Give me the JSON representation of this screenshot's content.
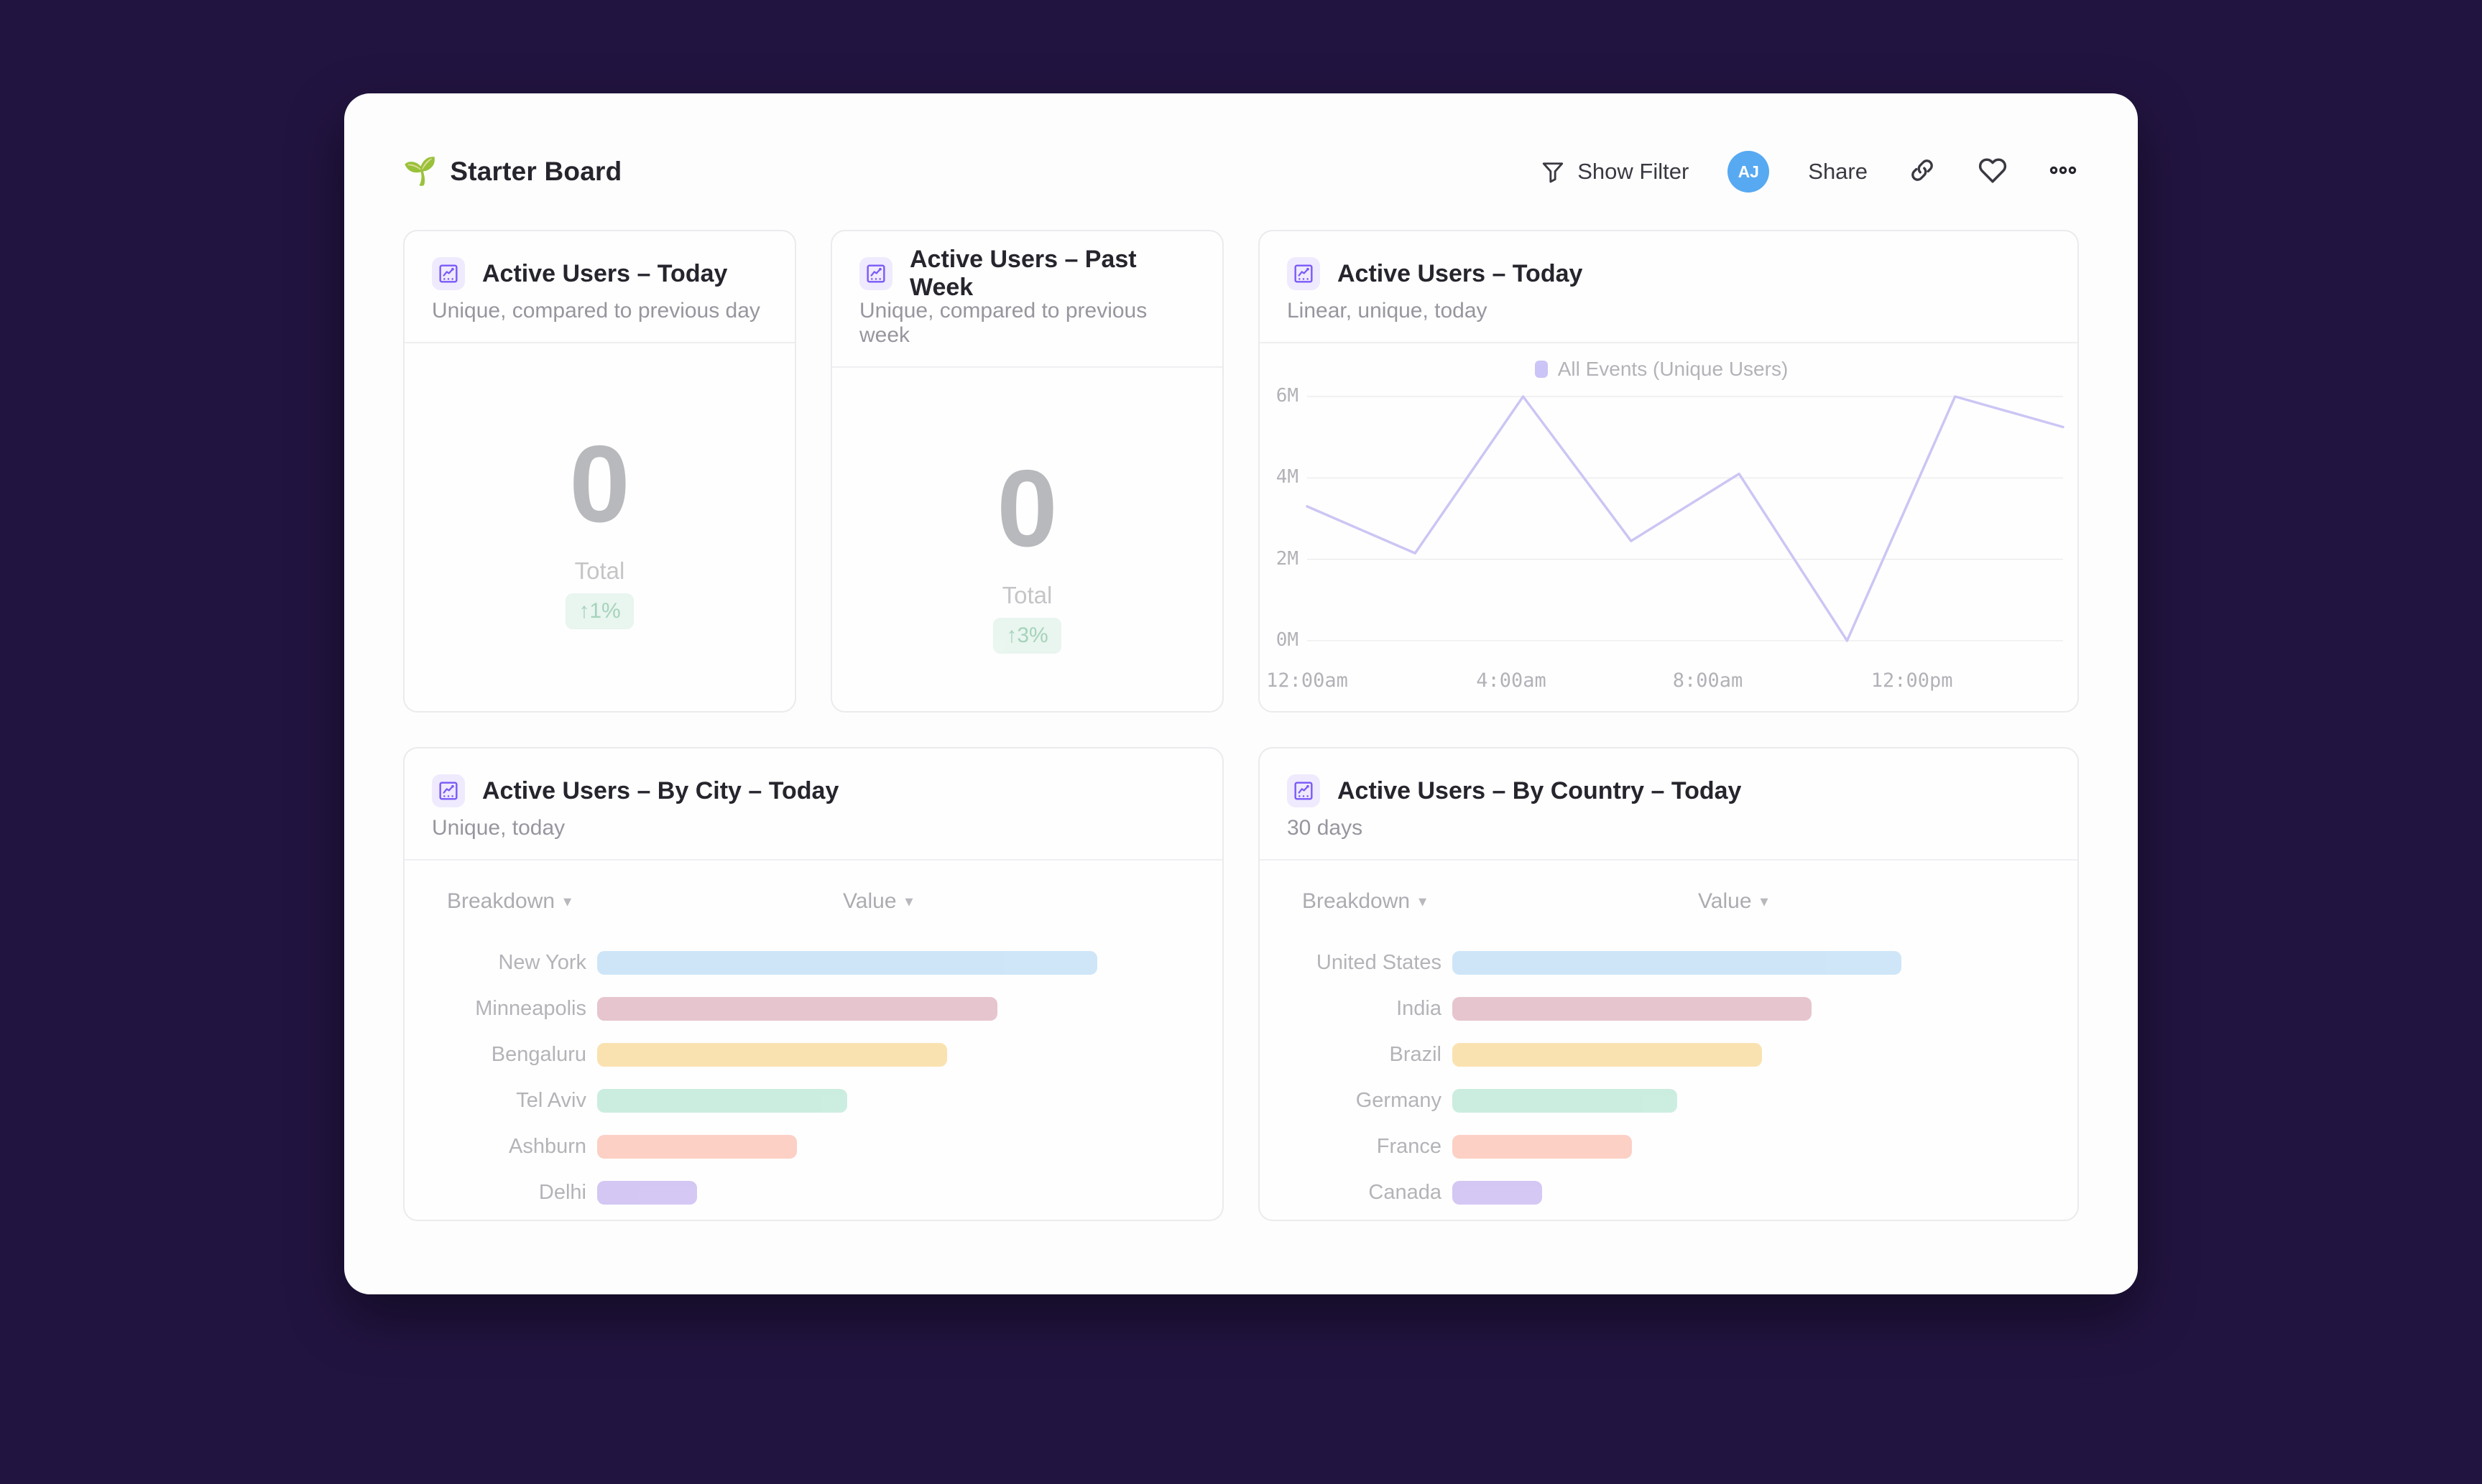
{
  "board": {
    "title": "Starter Board",
    "title_emoji": "🌱",
    "actions": {
      "show_filter": "Show Filter",
      "avatar_initials": "AJ",
      "share": "Share"
    }
  },
  "colors": {
    "page_background": "#221441",
    "accent_purple": "#7a5af8",
    "avatar_blue": "#57a9f1",
    "line_series": "#9a90ec",
    "badge_green_text": "#4fa97b",
    "badge_green_bg": "#d5ede1"
  },
  "widgets": {
    "kpi_today": {
      "title": "Active Users – Today",
      "subtitle": "Unique, compared to previous day",
      "value": "0",
      "value_label": "Total",
      "delta": "↑1%"
    },
    "kpi_week": {
      "title": "Active Users – Past Week",
      "subtitle": "Unique, compared to previous week",
      "value": "0",
      "value_label": "Total",
      "delta": "↑3%"
    },
    "line_today": {
      "title": "Active Users – Today",
      "subtitle": "Linear, unique, today",
      "legend": "All Events (Unique Users)"
    },
    "by_city": {
      "title": "Active Users – By City – Today",
      "subtitle": "Unique, today",
      "col_breakdown": "Breakdown",
      "col_value": "Value",
      "rows": [
        {
          "label": "New York",
          "pct": 100,
          "color": "#9fcdf1"
        },
        {
          "label": "Minneapolis",
          "pct": 80,
          "color": "#cf8d9f"
        },
        {
          "label": "Bengaluru",
          "pct": 70,
          "color": "#f7c765"
        },
        {
          "label": "Tel Aviv",
          "pct": 50,
          "color": "#99ddc1"
        },
        {
          "label": "Ashburn",
          "pct": 40,
          "color": "#fba38d"
        },
        {
          "label": "Delhi",
          "pct": 20,
          "color": "#ab91e9"
        }
      ]
    },
    "by_country": {
      "title": "Active Users – By Country – Today",
      "subtitle": "30 days",
      "col_breakdown": "Breakdown",
      "col_value": "Value",
      "rows": [
        {
          "label": "United States",
          "pct": 100,
          "color": "#9fcdf1"
        },
        {
          "label": "India",
          "pct": 80,
          "color": "#cf8d9f"
        },
        {
          "label": "Brazil",
          "pct": 69,
          "color": "#f7c765"
        },
        {
          "label": "Germany",
          "pct": 50,
          "color": "#99ddc1"
        },
        {
          "label": "France",
          "pct": 40,
          "color": "#fba38d"
        },
        {
          "label": "Canada",
          "pct": 20,
          "color": "#ab91e9"
        }
      ]
    }
  },
  "chart_data": {
    "type": "line",
    "title": "Active Users – Today",
    "series": [
      {
        "name": "All Events (Unique Users)",
        "x_hours": [
          0,
          2,
          4,
          6,
          8,
          10,
          12,
          14
        ],
        "values_millions": [
          3.3,
          2.15,
          6.0,
          2.45,
          4.1,
          0.0,
          6.0,
          5.25
        ]
      }
    ],
    "ylim": [
      0,
      6
    ],
    "y_ticks": [
      {
        "label": "6M",
        "value": 6
      },
      {
        "label": "4M",
        "value": 4
      },
      {
        "label": "2M",
        "value": 2
      },
      {
        "label": "0M",
        "value": 0
      }
    ],
    "x_ticks": [
      {
        "label": "12:00am",
        "pos": 0.0
      },
      {
        "label": "4:00am",
        "pos": 0.27
      },
      {
        "label": "8:00am",
        "pos": 0.53
      },
      {
        "label": "12:00pm",
        "pos": 0.8
      }
    ],
    "grid": true,
    "legend_position": "top"
  }
}
